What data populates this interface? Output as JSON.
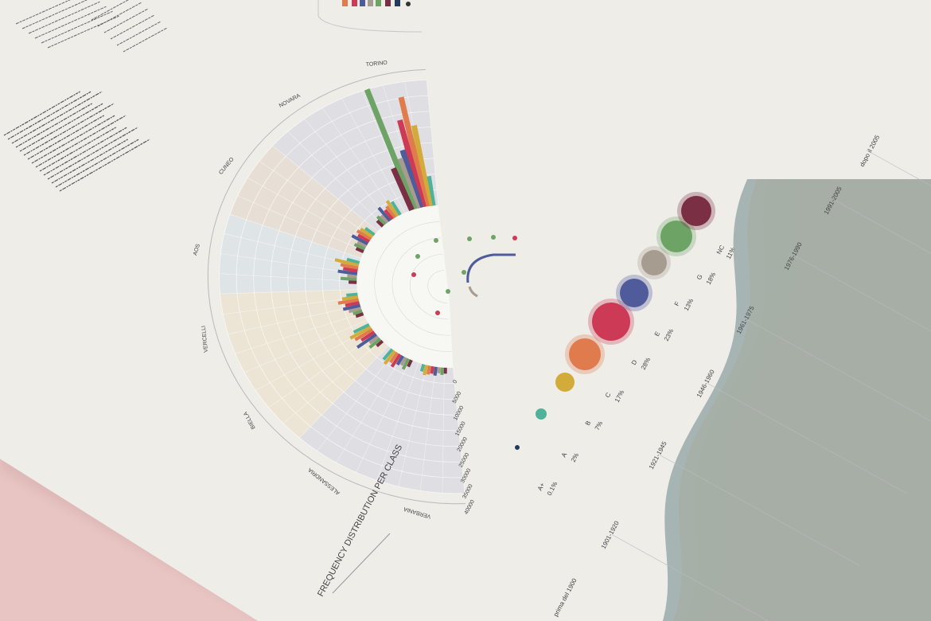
{
  "colors": {
    "background": "#e8c4c2",
    "paper": "#eeede8",
    "sector_a": "#dcdce2",
    "sector_b": "#e6ddd4",
    "sector_c": "#dde2e6",
    "sector_d": "#ebe2d2",
    "class_palette": [
      "#233a5c",
      "#4fb39a",
      "#d3ab3a",
      "#e07b4e",
      "#cc3a55",
      "#4f5b9a",
      "#a69c90",
      "#6da466",
      "#7a2f45"
    ]
  },
  "radial": {
    "title": "FREQUENCY DISTRIBUTION PER CLASS",
    "cities": [
      "TORINO",
      "NOVARA",
      "CUNEO",
      "AOS",
      "VERCELLI",
      "BIELLA",
      "ALESSANDRIA",
      "VERBANIA"
    ],
    "scale_labels": [
      "0",
      "5000",
      "10000",
      "15000",
      "20000",
      "25000",
      "30000",
      "35000",
      "40000"
    ]
  },
  "classes": {
    "labels": [
      "A+",
      "A",
      "B",
      "C",
      "D",
      "E",
      "F",
      "G",
      "NC"
    ],
    "percents": [
      "0.1%",
      "2%",
      "7%",
      "17%",
      "28%",
      "23%",
      "13%",
      "18%",
      "11%"
    ]
  },
  "timeline": {
    "periods": [
      "1901-1920",
      "1921-1945",
      "1946-1960",
      "1961-1975",
      "1976-1990",
      "1991-2005",
      "dopo il 2005"
    ],
    "start_label": "prima del 1900"
  },
  "icons": [
    "legend-swatches",
    "fold-shadow"
  ]
}
